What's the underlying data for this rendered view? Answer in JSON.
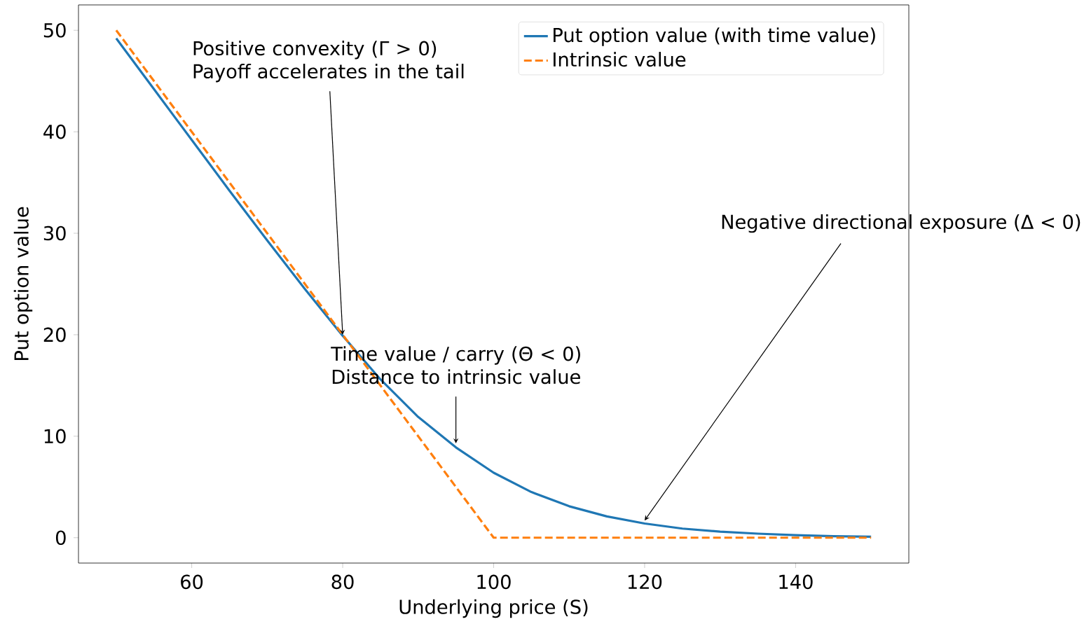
{
  "chart_data": {
    "type": "line",
    "xlabel": "Underlying price (S)",
    "ylabel": "Put option value",
    "x": [
      50,
      55,
      60,
      65,
      70,
      75,
      80,
      85,
      90,
      95,
      100,
      105,
      110,
      115,
      120,
      125,
      130,
      135,
      140,
      145,
      150
    ],
    "series": [
      {
        "name": "Put option value (with time value)",
        "color": "#1f77b4",
        "values": [
          49.2,
          44.2,
          39.2,
          34.2,
          29.3,
          24.5,
          19.9,
          15.6,
          11.9,
          8.9,
          6.4,
          4.5,
          3.1,
          2.1,
          1.4,
          0.9,
          0.6,
          0.4,
          0.25,
          0.15,
          0.1
        ]
      },
      {
        "name": "Intrinsic value",
        "color": "#ff7f0e",
        "line_style": "dashed",
        "x": [
          50,
          100,
          150
        ],
        "values": [
          50,
          0,
          0
        ]
      }
    ],
    "annotations": [
      {
        "text": "Positive convexity (Γ > 0) Payoff accelerates in the tail",
        "x": 80,
        "y": 20
      },
      {
        "text": "Time value / carry (Θ < 0) Distance to intrinsic value",
        "x": 95,
        "y": 9.3
      },
      {
        "text": "Negative directional exposure (Δ < 0)",
        "x": 120,
        "y": 1.7
      }
    ],
    "xlim": [
      45,
      155
    ],
    "ylim": [
      -2.5,
      52.5
    ],
    "xticks": [
      60,
      80,
      100,
      120,
      140
    ],
    "yticks": [
      0,
      10,
      20,
      30,
      40,
      50
    ],
    "legend": "top right"
  }
}
